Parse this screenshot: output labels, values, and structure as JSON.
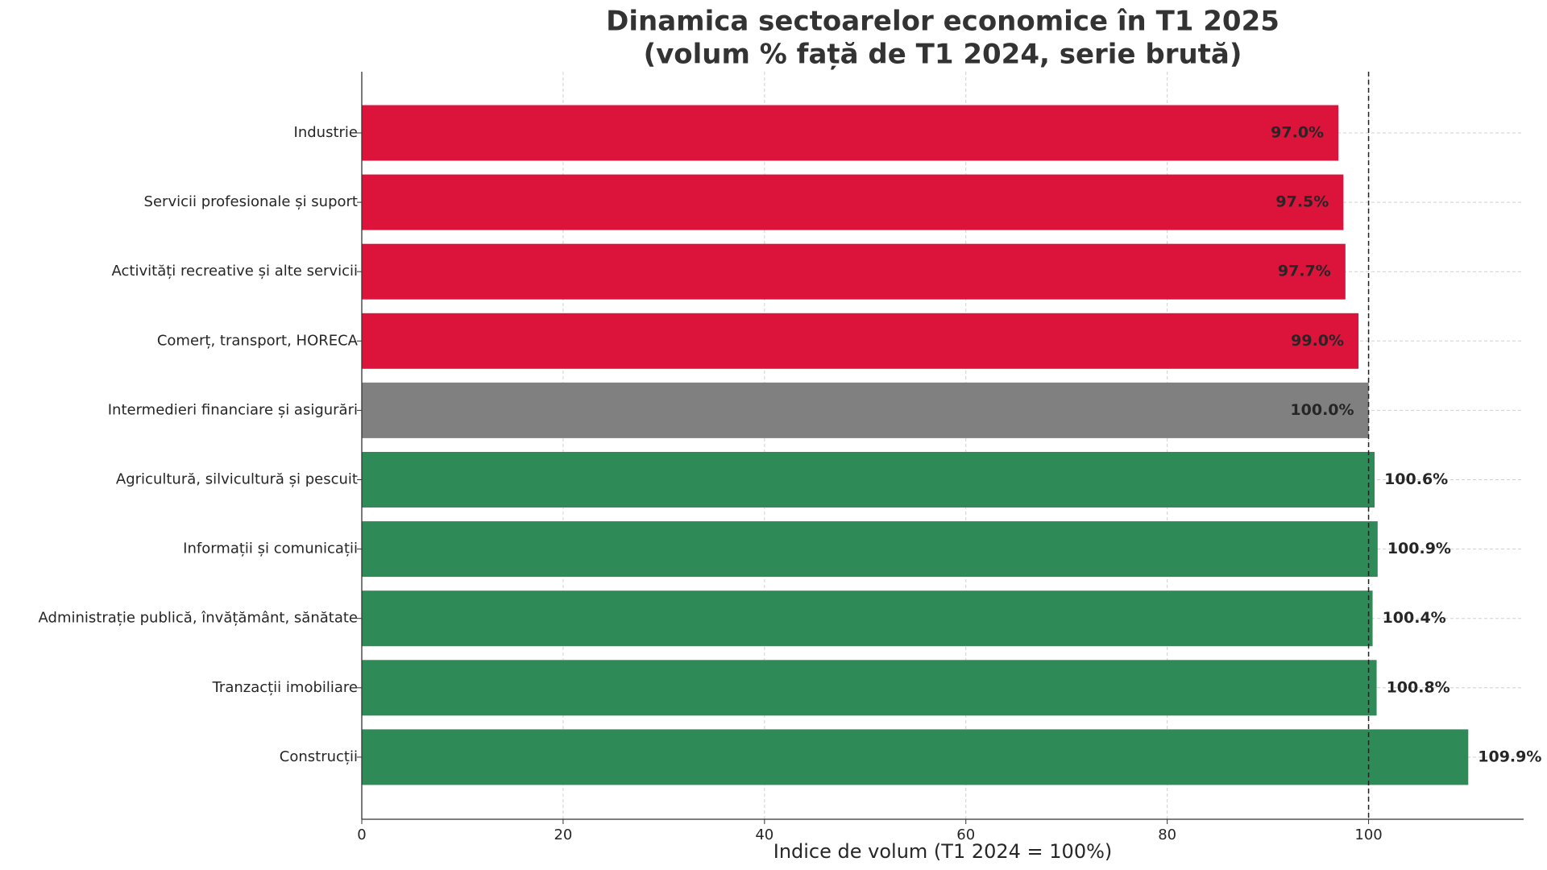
{
  "chart_data": {
    "type": "barh",
    "title": "Dinamica sectoarelor economice în T1 2025",
    "subtitle": "(volum % față de T1 2024, serie brută)",
    "x_label": "Indice de volum (T1 2024 = 100%)",
    "categories": [
      "Industrie",
      "Servicii profesionale și suport",
      "Activități recreative și alte servicii",
      "Comerț, transport, HORECA",
      "Intermedieri financiare și asigurări",
      "Agricultură, silvicultură și pescuit",
      "Informații și comunicații",
      "Administrație publică, învățământ, sănătate",
      "Tranzacții imobiliare",
      "Construcții"
    ],
    "values": [
      97.0,
      97.5,
      97.7,
      99.0,
      100.0,
      100.6,
      100.9,
      100.4,
      100.8,
      109.9
    ],
    "value_labels": [
      "97.0%",
      "97.5%",
      "97.7%",
      "99.0%",
      "100.0%",
      "100.6%",
      "100.9%",
      "100.4%",
      "100.8%",
      "109.9%"
    ],
    "colors": [
      "#dc143c",
      "#dc143c",
      "#dc143c",
      "#dc143c",
      "#808080",
      "#2e8b57",
      "#2e8b57",
      "#2e8b57",
      "#2e8b57",
      "#2e8b57"
    ],
    "xlim": [
      0,
      115.4
    ],
    "xticks": [
      0,
      20,
      40,
      60,
      80,
      100
    ],
    "reference_line": 100,
    "grid": true
  }
}
